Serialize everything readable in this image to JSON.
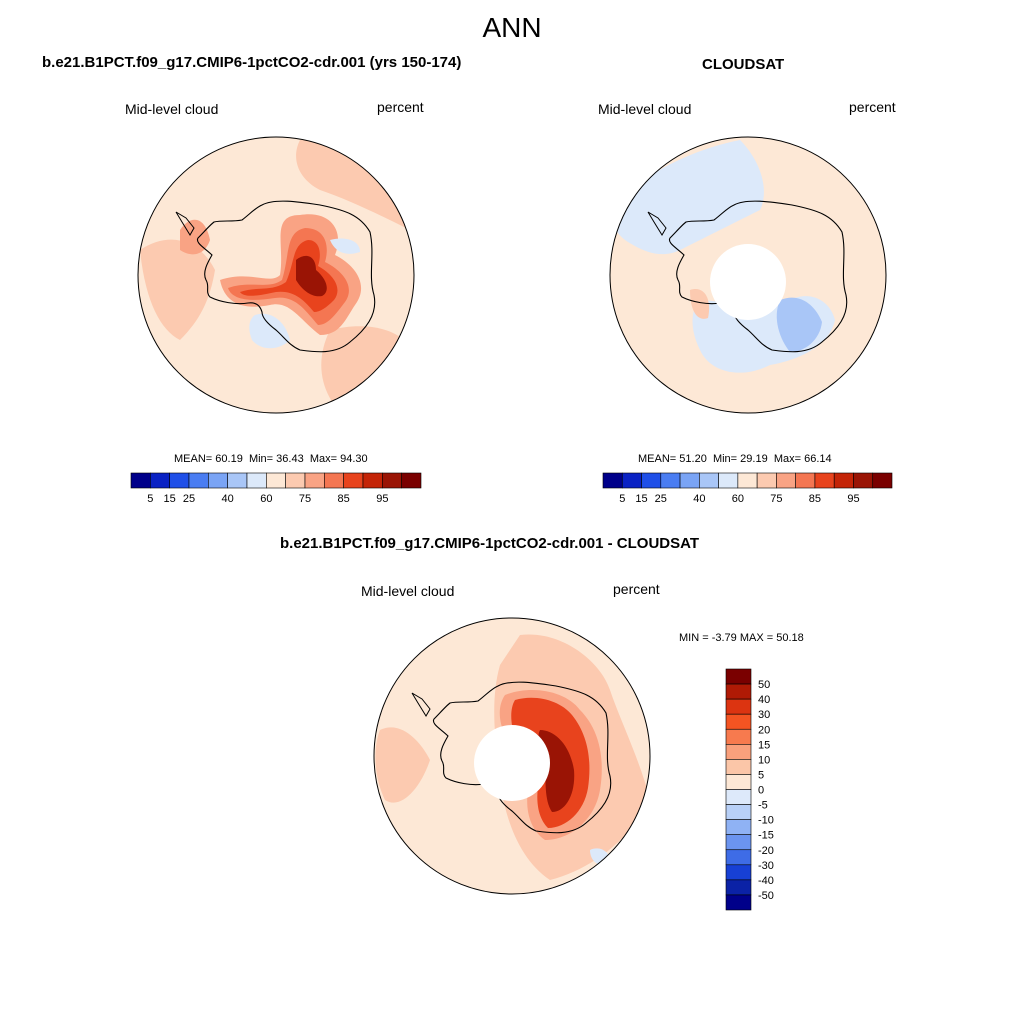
{
  "figure_title": "ANN",
  "panels": {
    "model": {
      "title": "b.e21.B1PCT.f09_g17.CMIP6-1pctCO2-cdr.001 (yrs 150-174)",
      "variable": "Mid-level cloud",
      "units": "percent",
      "stats": {
        "mean_label": "MEAN=",
        "mean": "60.19",
        "min_label": "Min=",
        "min": "36.43",
        "max_label": "Max=",
        "max": "94.30"
      }
    },
    "obs": {
      "title": "CLOUDSAT",
      "variable": "Mid-level cloud",
      "units": "percent",
      "stats": {
        "mean_label": "MEAN=",
        "mean": "51.20",
        "min_label": "Min=",
        "min": "29.19",
        "max_label": "Max=",
        "max": "66.14"
      }
    },
    "diff": {
      "title": "b.e21.B1PCT.f09_g17.CMIP6-1pctCO2-cdr.001 - CLOUDSAT",
      "variable": "Mid-level cloud",
      "units": "percent",
      "stats": {
        "min_label": "MIN =",
        "min": "-3.79",
        "max_label": "MAX =",
        "max": "50.18"
      }
    }
  },
  "colorbars": {
    "absolute": {
      "labels": [
        "5",
        "15",
        "25",
        "40",
        "60",
        "75",
        "85",
        "95"
      ],
      "colors": [
        "#00008a",
        "#0a22c4",
        "#1f4fe8",
        "#4a7df2",
        "#7aa4f5",
        "#a9c6f7",
        "#dce9fa",
        "#fde8d6",
        "#fccab0",
        "#f9a384",
        "#f47652",
        "#e8431d",
        "#c42407",
        "#9a1405",
        "#7a0000"
      ]
    },
    "difference": {
      "labels": [
        "50",
        "40",
        "30",
        "20",
        "15",
        "10",
        "5",
        "0",
        "-5",
        "-10",
        "-15",
        "-20",
        "-30",
        "-40",
        "-50"
      ],
      "colors": [
        "#7a0000",
        "#b01a05",
        "#dc3411",
        "#f45422",
        "#f77a4e",
        "#f9a07c",
        "#fbc6a8",
        "#fde8d6",
        "#dde9fa",
        "#b8d0f7",
        "#8fb2f4",
        "#6b94ef",
        "#3e6ce6",
        "#1740d5",
        "#0b22a6",
        "#00008a"
      ]
    }
  }
}
